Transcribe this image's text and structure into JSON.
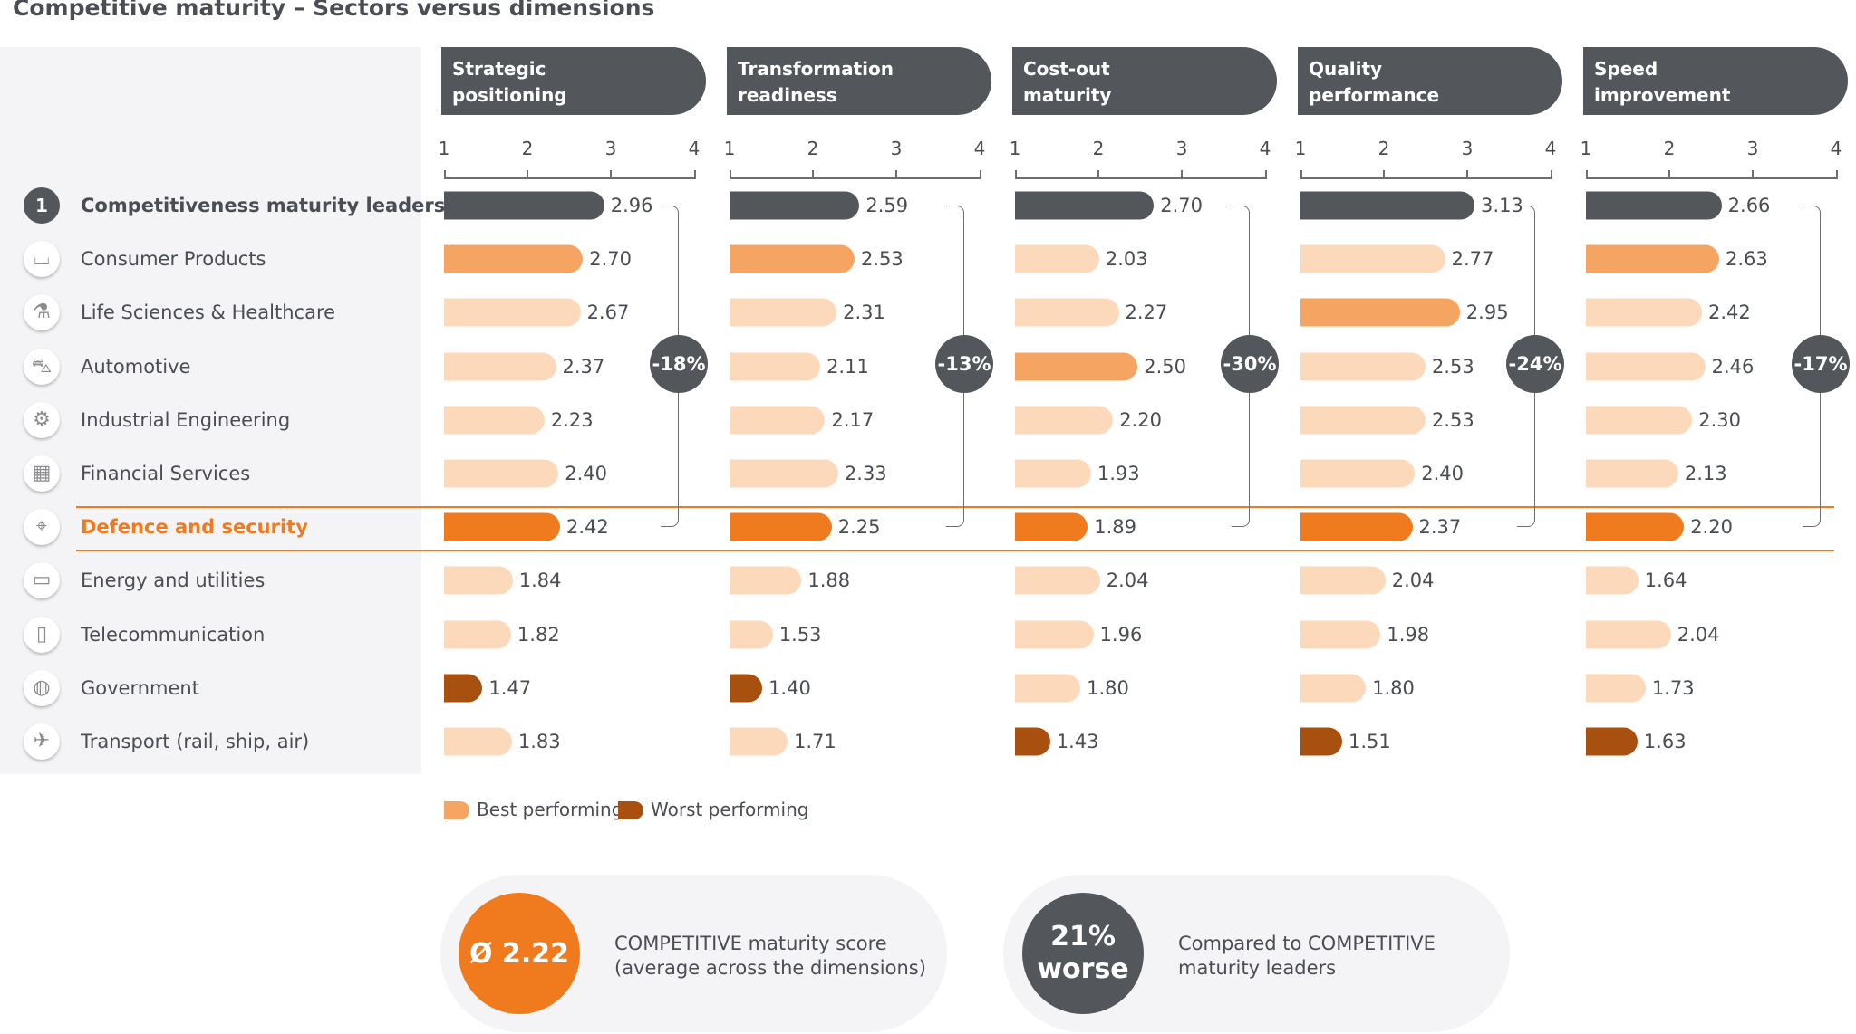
{
  "title": "Competitive maturity – Sectors versus dimensions",
  "chart_data": {
    "type": "bar",
    "orientation": "horizontal",
    "title": "Competitive maturity – Sectors versus dimensions",
    "xlim": [
      1,
      4
    ],
    "ticks": [
      "1",
      "2",
      "3",
      "4"
    ],
    "categories": [
      "Competitiveness maturity leaders",
      "Consumer Products",
      "Life Sciences & Healthcare",
      "Automotive",
      "Industrial Engineering",
      "Financial Services",
      "Defence and security",
      "Energy and utilities",
      "Telecommunication",
      "Government",
      "Transport (rail, ship, air)"
    ],
    "leader_rank": "1",
    "highlight_category": "Defence and security",
    "series": [
      {
        "name": "Strategic positioning",
        "values": [
          2.96,
          2.7,
          2.67,
          2.37,
          2.23,
          2.4,
          2.42,
          1.84,
          1.82,
          1.47,
          1.83
        ],
        "labels": [
          "2.96",
          "2.70",
          "2.67",
          "2.37",
          "2.23",
          "2.40",
          "2.42",
          "1.84",
          "1.82",
          "1.47",
          "1.83"
        ],
        "best": 1,
        "worst": 9,
        "gap": "-18%"
      },
      {
        "name": "Transformation readiness",
        "values": [
          2.59,
          2.53,
          2.31,
          2.11,
          2.17,
          2.33,
          2.25,
          1.88,
          1.53,
          1.4,
          1.71
        ],
        "labels": [
          "2.59",
          "2.53",
          "2.31",
          "2.11",
          "2.17",
          "2.33",
          "2.25",
          "1.88",
          "1.53",
          "1.40",
          "1.71"
        ],
        "best": 1,
        "worst": 9,
        "gap": "-13%"
      },
      {
        "name": "Cost-out maturity",
        "values": [
          2.7,
          2.03,
          2.27,
          2.5,
          2.2,
          1.93,
          1.89,
          2.04,
          1.96,
          1.8,
          1.43
        ],
        "labels": [
          "2.70",
          "2.03",
          "2.27",
          "2.50",
          "2.20",
          "1.93",
          "1.89",
          "2.04",
          "1.96",
          "1.80",
          "1.43"
        ],
        "best": 3,
        "worst": 10,
        "gap": "-30%"
      },
      {
        "name": "Quality performance",
        "values": [
          3.13,
          2.77,
          2.95,
          2.53,
          2.53,
          2.4,
          2.37,
          2.04,
          1.98,
          1.8,
          1.51
        ],
        "labels": [
          "3.13",
          "2.77",
          "2.95",
          "2.53",
          "2.53",
          "2.40",
          "2.37",
          "2.04",
          "1.98",
          "1.80",
          "1.51"
        ],
        "best": 2,
        "worst": 10,
        "gap": "-24%"
      },
      {
        "name": "Speed improvement",
        "values": [
          2.66,
          2.63,
          2.42,
          2.46,
          2.3,
          2.13,
          2.2,
          1.64,
          2.04,
          1.73,
          1.63
        ],
        "labels": [
          "2.66",
          "2.63",
          "2.42",
          "2.46",
          "2.30",
          "2.13",
          "2.20",
          "1.64",
          "2.04",
          "1.73",
          "1.63"
        ],
        "best": 1,
        "worst": 10,
        "gap": "-17%"
      }
    ],
    "headers": [
      [
        "Strategic",
        "positioning"
      ],
      [
        "Transformation",
        "readiness"
      ],
      [
        "Cost-out",
        "maturity"
      ],
      [
        "Quality",
        "performance"
      ],
      [
        "Speed",
        "improvement"
      ]
    ],
    "legend": {
      "best": "Best performing",
      "worst": "Worst performing",
      "position": "bottom-left"
    },
    "colors": {
      "leader": "#53565a",
      "best": "#f5a462",
      "normal": "#fcd9bb",
      "highlight": "#f07b1e",
      "worst": "#a8500f",
      "header": "#53565a"
    }
  },
  "icons": [
    "rank-badge",
    "basket-icon",
    "flask-icon",
    "car-icon",
    "gears-icon",
    "calculator-icon",
    "satellite-dish-icon",
    "battery-icon",
    "tablet-icon",
    "globe-icon",
    "airplane-icon"
  ],
  "icon_glyphs": [
    "1",
    "⌴",
    "⚗",
    "⛍",
    "⚙",
    "▦",
    "⌖",
    "▭",
    "▯",
    "◍",
    "✈"
  ],
  "summary": {
    "score": "Ø 2.22",
    "score_text": "COMPETITIVE maturity score\n(average across the dimensions)",
    "gap_line1": "21%",
    "gap_line2": "worse",
    "gap_text": "Compared to COMPETITIVE\nmaturity leaders"
  }
}
